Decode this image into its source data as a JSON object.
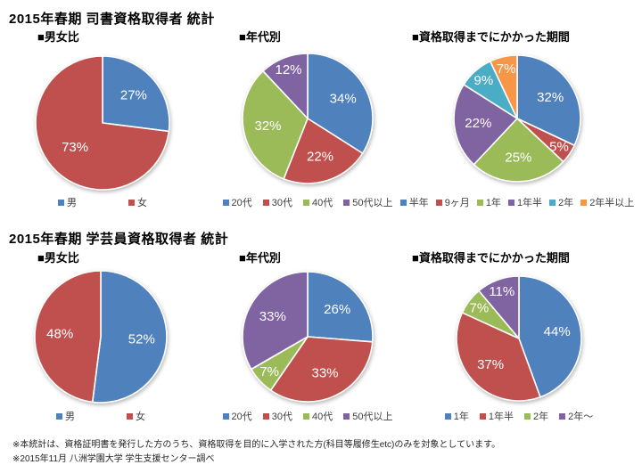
{
  "page": {
    "section1_title": "2015年春期 司書資格取得者 統計",
    "section2_title": "2015年春期 学芸員資格取得者 統計",
    "footnote1": "※本統計は、資格証明書を発行した方のうち、資格取得を目的に入学された方(科目等履修生etc)のみを対象としています。",
    "footnote2": "※2015年11月 八洲学園大学 学生支援センター調べ"
  },
  "palette": {
    "blue": "#4F81BD",
    "red": "#C0504D",
    "green": "#9BBB59",
    "purple": "#8064A2",
    "teal": "#4BACC6",
    "orange": "#F79646"
  },
  "chart_data": [
    {
      "type": "pie",
      "section": "司書資格取得者",
      "title": "■男女比",
      "labels": [
        "男",
        "女"
      ],
      "values": [
        27,
        73
      ],
      "value_labels": [
        "27%",
        "73%"
      ],
      "colors": [
        "#4F81BD",
        "#C0504D"
      ],
      "legend_position": "bottom"
    },
    {
      "type": "pie",
      "section": "司書資格取得者",
      "title": "■年代別",
      "labels": [
        "20代",
        "30代",
        "40代",
        "50代以上"
      ],
      "values": [
        34,
        22,
        32,
        12
      ],
      "value_labels": [
        "34%",
        "22%",
        "32%",
        "12%"
      ],
      "colors": [
        "#4F81BD",
        "#C0504D",
        "#9BBB59",
        "#8064A2"
      ],
      "legend_position": "bottom"
    },
    {
      "type": "pie",
      "section": "司書資格取得者",
      "title": "■資格取得までにかかった期間",
      "labels": [
        "半年",
        "9ヶ月",
        "1年",
        "1年半",
        "2年",
        "2年半以上"
      ],
      "values": [
        32,
        5,
        25,
        22,
        9,
        7
      ],
      "value_labels": [
        "32%",
        "5%",
        "25%",
        "22%",
        "9%",
        "7%"
      ],
      "colors": [
        "#4F81BD",
        "#C0504D",
        "#9BBB59",
        "#8064A2",
        "#4BACC6",
        "#F79646"
      ],
      "legend_position": "bottom"
    },
    {
      "type": "pie",
      "section": "学芸員資格取得者",
      "title": "■男女比",
      "labels": [
        "男",
        "女"
      ],
      "values": [
        52,
        48
      ],
      "value_labels": [
        "52%",
        "48%"
      ],
      "colors": [
        "#4F81BD",
        "#C0504D"
      ],
      "legend_position": "bottom"
    },
    {
      "type": "pie",
      "section": "学芸員資格取得者",
      "title": "■年代別",
      "labels": [
        "20代",
        "30代",
        "40代",
        "50代以上"
      ],
      "values": [
        26,
        33,
        7,
        33
      ],
      "value_labels": [
        "26%",
        "33%",
        "7%",
        "33%"
      ],
      "colors": [
        "#4F81BD",
        "#C0504D",
        "#9BBB59",
        "#8064A2"
      ],
      "legend_position": "bottom"
    },
    {
      "type": "pie",
      "section": "学芸員資格取得者",
      "title": "■資格取得までにかかった期間",
      "labels": [
        "1年",
        "1年半",
        "2年",
        "2年〜"
      ],
      "values": [
        44,
        37,
        7,
        11
      ],
      "value_labels": [
        "44%",
        "37%",
        "7%",
        "11%"
      ],
      "colors": [
        "#4F81BD",
        "#C0504D",
        "#9BBB59",
        "#8064A2"
      ],
      "legend_position": "bottom"
    }
  ]
}
